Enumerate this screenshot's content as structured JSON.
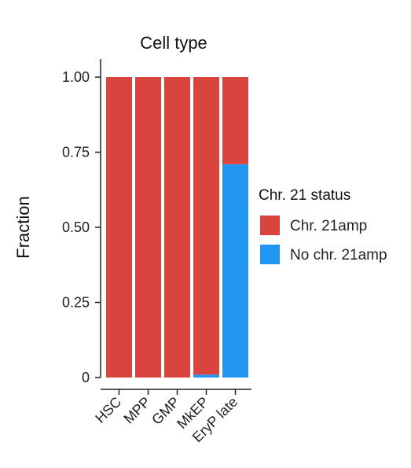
{
  "chart_data": {
    "type": "bar",
    "stacked": true,
    "title": "Cell type",
    "xlabel": "",
    "ylabel": "Fraction",
    "ylim": [
      0,
      1
    ],
    "yticks": [
      "0",
      "0.25",
      "0.50",
      "0.75",
      "1.00"
    ],
    "ytick_values": [
      0,
      0.25,
      0.5,
      0.75,
      1.0
    ],
    "categories": [
      "HSC",
      "MPP",
      "GMP",
      "MkEP",
      "EryP late"
    ],
    "series": [
      {
        "name": "No chr. 21amp",
        "color": "#2196f3",
        "values": [
          0,
          0,
          0,
          0.01,
          0.71
        ]
      },
      {
        "name": "Chr. 21amp",
        "color": "#d9443f",
        "values": [
          1.0,
          1.0,
          1.0,
          0.99,
          0.29
        ]
      }
    ],
    "legend": {
      "title": "Chr. 21 status",
      "position": "right",
      "entries": [
        {
          "label": "Chr. 21amp",
          "color": "#d9443f"
        },
        {
          "label": "No chr. 21amp",
          "color": "#2196f3"
        }
      ]
    },
    "grid": false
  }
}
